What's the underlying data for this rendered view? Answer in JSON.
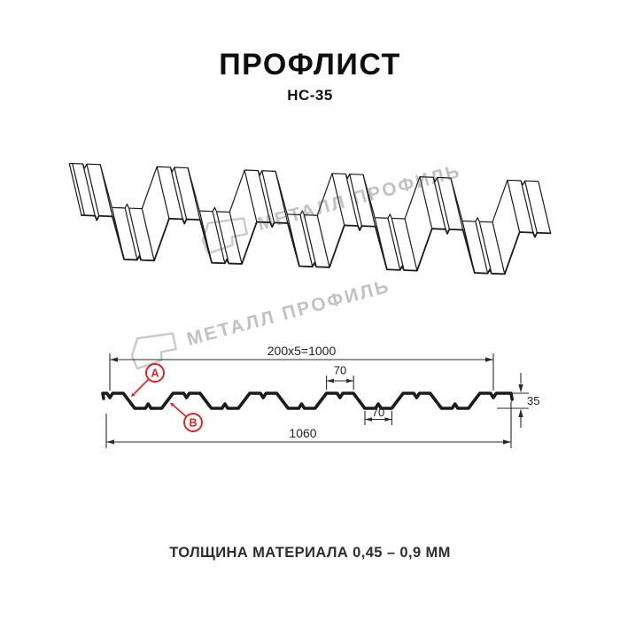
{
  "title": "ПРОФЛИСТ",
  "subtitle": "НС-35",
  "watermark": {
    "brand": "МЕТАЛЛ ПРОФИЛЬ"
  },
  "drawing": {
    "dim_coverage": "200x5=1000",
    "dim_rib_top": "70",
    "dim_rib_bottom": "70",
    "dim_overall_width": "1060",
    "dim_height": "35",
    "side_a": "A",
    "side_b": "B"
  },
  "footer": {
    "thickness_note": "ТОЛЩИНА МАТЕРИАЛА 0,45 – 0,9 ММ"
  },
  "profile_specs": {
    "name": "НС-35",
    "height_mm": 35,
    "overall_width_mm": 1060,
    "working_width_mm": 1000,
    "rib_pitch_mm": 200,
    "rib_top_width_mm": 70,
    "rib_bottom_width_mm": 70,
    "thickness_mm": "0,45 – 0,9"
  },
  "colors": {
    "line": "#1b1b1b",
    "accent_red": "#e31e24",
    "watermark": "#c2c2c2"
  }
}
